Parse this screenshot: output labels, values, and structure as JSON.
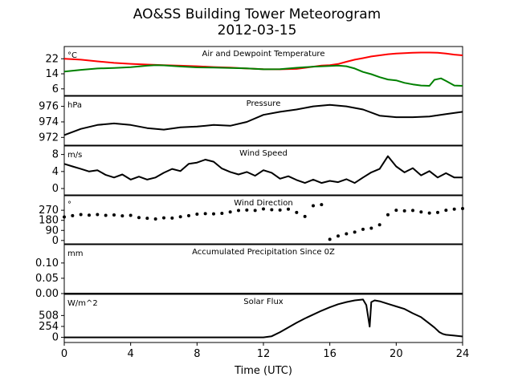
{
  "figure": {
    "title": "AO&SS Building Tower Meteorogram",
    "subtitle": "2012-03-15",
    "xlabel": "Time (UTC)",
    "x_ticks": [
      "0",
      "4",
      "8",
      "12",
      "16",
      "20",
      "24"
    ]
  },
  "chart_data": [
    {
      "type": "line",
      "title": "Air and Dewpoint Temperature",
      "unit_label": "°C",
      "xlim": [
        0,
        24
      ],
      "ylim": [
        2.5,
        28.5
      ],
      "yticks": [
        6,
        14,
        22
      ],
      "series": [
        {
          "color": "#ff0000",
          "x": [
            0,
            1,
            2,
            3,
            4,
            5,
            6,
            7,
            8,
            9,
            10,
            11,
            12,
            13,
            14,
            15,
            15.5,
            16,
            16.5,
            17,
            17.5,
            18,
            18.5,
            19,
            19.5,
            20,
            20.5,
            21,
            21.5,
            22,
            22.5,
            23,
            23.5,
            24
          ],
          "y": [
            22.0,
            21.5,
            20.6,
            19.8,
            19.3,
            18.9,
            18.6,
            18.3,
            18.0,
            17.6,
            17.3,
            16.8,
            16.5,
            16.4,
            16.6,
            17.8,
            18.4,
            18.6,
            19.2,
            20.4,
            21.5,
            22.3,
            23.2,
            23.8,
            24.4,
            24.8,
            25.0,
            25.2,
            25.3,
            25.3,
            25.2,
            24.8,
            24.2,
            23.8
          ]
        },
        {
          "color": "#008000",
          "x": [
            0,
            1,
            2,
            3,
            4,
            5,
            5.5,
            6,
            7,
            8,
            9,
            10,
            11,
            12,
            13,
            14,
            15,
            16,
            16.5,
            17,
            17.5,
            18,
            18.5,
            19,
            19.5,
            20,
            20.5,
            21,
            21.5,
            22,
            22.3,
            22.7,
            23,
            23.5,
            24
          ],
          "y": [
            15.2,
            16.1,
            16.8,
            17.1,
            17.5,
            18.3,
            18.6,
            18.5,
            17.9,
            17.4,
            17.3,
            17.1,
            16.9,
            16.4,
            16.5,
            17.2,
            17.8,
            18.2,
            18.4,
            18.0,
            16.8,
            15.0,
            13.8,
            12.2,
            11.0,
            10.5,
            9.2,
            8.4,
            7.8,
            7.6,
            10.8,
            11.6,
            10.2,
            7.8,
            7.6
          ]
        }
      ]
    },
    {
      "type": "line",
      "title": "Pressure",
      "unit_label": "hPa",
      "xlim": [
        0,
        24
      ],
      "ylim": [
        971,
        977.3
      ],
      "yticks": [
        972,
        974,
        976
      ],
      "series": [
        {
          "color": "#000000",
          "x": [
            0,
            1,
            2,
            3,
            4,
            5,
            6,
            7,
            8,
            9,
            10,
            11,
            12,
            13,
            14,
            15,
            16,
            17,
            18,
            19,
            20,
            21,
            22,
            23,
            24
          ],
          "y": [
            972.3,
            973.1,
            973.6,
            973.8,
            973.6,
            973.2,
            973.0,
            973.3,
            973.4,
            973.6,
            973.5,
            974.0,
            974.9,
            975.3,
            975.6,
            976.0,
            976.2,
            976.0,
            975.6,
            974.8,
            974.6,
            974.6,
            974.7,
            975.0,
            975.3
          ]
        }
      ]
    },
    {
      "type": "line",
      "title": "Wind Speed",
      "unit_label": "m/s",
      "xlim": [
        0,
        24
      ],
      "ylim": [
        -1.5,
        10
      ],
      "yticks": [
        0,
        4,
        8
      ],
      "series": [
        {
          "color": "#000000",
          "x": [
            0,
            0.5,
            1,
            1.5,
            2,
            2.5,
            3,
            3.5,
            4,
            4.5,
            5,
            5.5,
            6,
            6.5,
            7,
            7.5,
            8,
            8.5,
            9,
            9.5,
            10,
            10.5,
            11,
            11.5,
            12,
            12.5,
            13,
            13.5,
            14,
            14.5,
            15,
            15.5,
            16,
            16.5,
            17,
            17.5,
            18,
            18.5,
            19,
            19.5,
            20,
            20.5,
            21,
            21.5,
            22,
            22.5,
            23,
            23.5,
            24
          ],
          "y": [
            5.8,
            5.2,
            4.6,
            4.0,
            4.3,
            3.2,
            2.6,
            3.3,
            2.1,
            2.8,
            2.1,
            2.6,
            3.7,
            4.6,
            4.1,
            5.8,
            6.1,
            6.8,
            6.3,
            4.7,
            3.9,
            3.3,
            3.9,
            3.0,
            4.3,
            3.7,
            2.3,
            2.9,
            2.0,
            1.3,
            2.1,
            1.3,
            1.8,
            1.5,
            2.2,
            1.3,
            2.6,
            3.8,
            4.6,
            7.6,
            5.2,
            3.8,
            4.8,
            3.1,
            4.1,
            2.6,
            3.6,
            2.6,
            2.6
          ]
        }
      ]
    },
    {
      "type": "scatter",
      "title": "Wind Direction",
      "unit_label": "°",
      "xlim": [
        0,
        24
      ],
      "ylim": [
        -30,
        400
      ],
      "yticks": [
        0,
        90,
        180,
        270
      ],
      "series": [
        {
          "color": "#000000",
          "x": [
            0,
            0.5,
            1,
            1.5,
            2,
            2.5,
            3,
            3.5,
            4,
            4.5,
            5,
            5.5,
            6,
            6.5,
            7,
            7.5,
            8,
            8.5,
            9,
            9.5,
            10,
            10.5,
            11,
            11.5,
            12,
            12.5,
            13,
            13.5,
            14,
            14.5,
            15,
            15.5,
            16,
            16.5,
            17,
            17.5,
            18,
            18.5,
            19,
            19.5,
            20,
            20.5,
            21,
            21.5,
            22,
            22.5,
            23,
            23.5,
            24
          ],
          "y": [
            210,
            222,
            232,
            226,
            232,
            224,
            228,
            220,
            224,
            205,
            198,
            192,
            202,
            200,
            212,
            222,
            235,
            240,
            238,
            242,
            255,
            268,
            272,
            268,
            282,
            275,
            272,
            280,
            250,
            215,
            310,
            320,
            10,
            40,
            60,
            75,
            100,
            110,
            140,
            230,
            270,
            265,
            268,
            255,
            245,
            250,
            270,
            280,
            285
          ]
        }
      ]
    },
    {
      "type": "line",
      "title": "Accumulated Precipitation Since 0Z",
      "unit_label": "mm",
      "xlim": [
        0,
        24
      ],
      "ylim": [
        0,
        0.16
      ],
      "yticks": [
        0.0,
        0.05,
        0.1
      ],
      "ytick_labels": [
        "0.00",
        "0.05",
        "0.10"
      ],
      "series": [
        {
          "color": "#000000",
          "x": [
            0,
            24
          ],
          "y": [
            0,
            0
          ]
        }
      ]
    },
    {
      "type": "line",
      "title": "Solar Flux",
      "unit_label": "W/m^2",
      "xlim": [
        0,
        24
      ],
      "ylim": [
        -120,
        1000
      ],
      "yticks": [
        0,
        254,
        508
      ],
      "series": [
        {
          "color": "#000000",
          "x": [
            0,
            4,
            8,
            12,
            12.5,
            13,
            13.5,
            14,
            14.5,
            15,
            15.5,
            16,
            16.5,
            17,
            17.5,
            18,
            18.2,
            18.4,
            18.5,
            18.7,
            19,
            19.5,
            20,
            20.5,
            21,
            21.5,
            22,
            22.3,
            22.6,
            22.8,
            23,
            23.5,
            24
          ],
          "y": [
            0,
            0,
            0,
            0,
            25,
            120,
            230,
            340,
            440,
            530,
            620,
            700,
            770,
            820,
            860,
            880,
            750,
            250,
            820,
            860,
            840,
            780,
            720,
            660,
            560,
            470,
            320,
            230,
            120,
            80,
            60,
            40,
            20
          ]
        }
      ]
    }
  ]
}
